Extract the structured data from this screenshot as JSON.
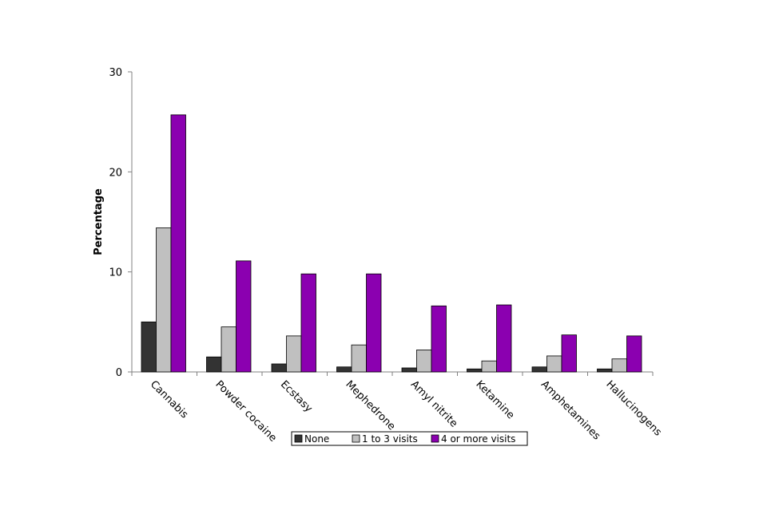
{
  "chart_data": {
    "type": "bar",
    "title": "",
    "xlabel": "",
    "ylabel": "Percentage",
    "ylim": [
      0,
      30
    ],
    "yticks": [
      "0",
      "10",
      "20",
      "30"
    ],
    "grid": false,
    "legend_position": "bottom",
    "categories": [
      "Cannabis",
      "Powder cocaine",
      "Ecstasy",
      "Mephedrone",
      "Amyl nitrite",
      "Ketamine",
      "Amphetamines",
      "Hallucinogens"
    ],
    "series": [
      {
        "name": "None",
        "color": "#333333",
        "values": [
          5.0,
          1.5,
          0.8,
          0.5,
          0.4,
          0.3,
          0.5,
          0.3
        ]
      },
      {
        "name": "1 to 3 visits",
        "color": "#c0c0c0",
        "values": [
          14.4,
          4.5,
          3.6,
          2.7,
          2.2,
          1.1,
          1.6,
          1.3
        ]
      },
      {
        "name": "4 or more visits",
        "color": "#8b00b0",
        "values": [
          25.7,
          11.1,
          9.8,
          9.8,
          6.6,
          6.7,
          3.7,
          3.6
        ]
      }
    ]
  }
}
